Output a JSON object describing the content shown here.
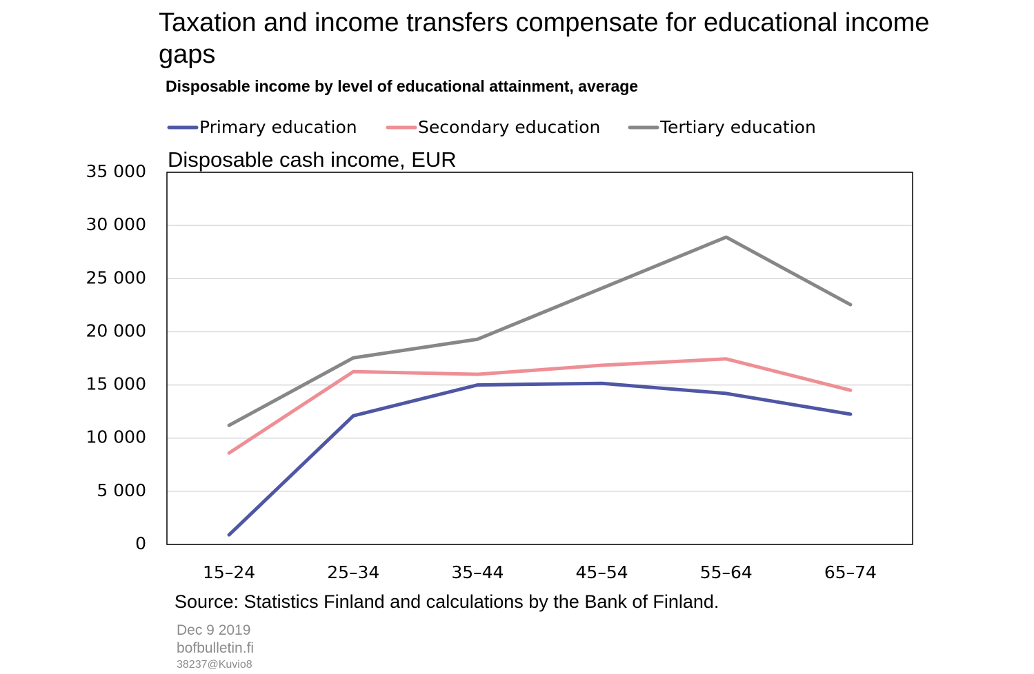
{
  "chart_data": {
    "type": "line",
    "title": "Taxation and income transfers compensate for educational income gaps",
    "subtitle": "Disposable income by level of educational attainment, average",
    "y_label": "Disposable cash income, EUR",
    "categories": [
      "15–24",
      "25–34",
      "35–44",
      "45–54",
      "55–64",
      "65–74"
    ],
    "series": [
      {
        "name": "Primary education",
        "color": "#4f56a3",
        "values": [
          900,
          12100,
          15000,
          15150,
          14200,
          12250
        ]
      },
      {
        "name": "Secondary education",
        "color": "#ee8f95",
        "values": [
          8600,
          16250,
          16000,
          16850,
          17450,
          14500
        ]
      },
      {
        "name": "Tertiary education",
        "color": "#878787",
        "values": [
          11200,
          17550,
          19300,
          24100,
          28900,
          22550
        ]
      }
    ],
    "ylim": [
      0,
      35000
    ],
    "yticks": [
      0,
      {
        "value": 5000,
        "label": "5 000"
      },
      {
        "value": 10000,
        "label": "10 000"
      },
      {
        "value": 15000,
        "label": "15 000"
      },
      {
        "value": 20000,
        "label": "20 000"
      },
      {
        "value": 25000,
        "label": "25 000"
      },
      {
        "value": 30000,
        "label": "30 000"
      },
      {
        "value": 35000,
        "label": "35 000"
      }
    ],
    "grid": true,
    "source": "Source: Statistics Finland and calculations by the Bank of Finland.",
    "footer": [
      "Dec 9 2019",
      "bofbulletin.fi",
      "38237@Kuvio8"
    ]
  }
}
